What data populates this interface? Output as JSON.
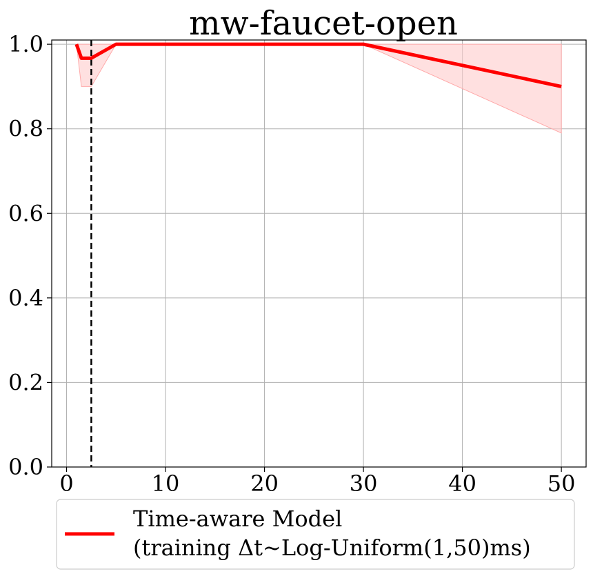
{
  "chart_data": {
    "type": "line",
    "title": "mw-faucet-open",
    "xlabel": "",
    "ylabel": "",
    "xlim": [
      -1.5,
      52.5
    ],
    "ylim": [
      0.0,
      1.01
    ],
    "x_ticks": [
      0,
      10,
      20,
      30,
      40,
      50
    ],
    "x_tick_labels": [
      "0",
      "10",
      "20",
      "30",
      "40",
      "50"
    ],
    "y_ticks": [
      0.0,
      0.2,
      0.4,
      0.6,
      0.8,
      1.0
    ],
    "y_tick_labels": [
      "0.0",
      "0.2",
      "0.4",
      "0.6",
      "0.8",
      "1.0"
    ],
    "grid": true,
    "series": [
      {
        "name": "Time-aware Model (training Δt~Log-Uniform(1,50)ms)",
        "color": "#ff0000",
        "x": [
          1,
          1.5,
          2.5,
          5,
          10,
          20,
          30,
          50
        ],
        "y": [
          1.0,
          0.967,
          0.967,
          1.0,
          1.0,
          1.0,
          1.0,
          0.9
        ],
        "band_lower": [
          1.0,
          0.9,
          0.9,
          1.0,
          1.0,
          1.0,
          1.0,
          0.79
        ],
        "band_upper": [
          1.0,
          1.0,
          1.0,
          1.0,
          1.0,
          1.0,
          1.0,
          1.0
        ],
        "band_color": "#ffcccc"
      }
    ],
    "vline": {
      "x": 2.5,
      "style": "dashed",
      "color": "#000000"
    },
    "legend": {
      "placement": "bottom",
      "line1": "Time-aware Model",
      "line2": "(training Δt~Log-Uniform(1,50)ms)"
    }
  }
}
